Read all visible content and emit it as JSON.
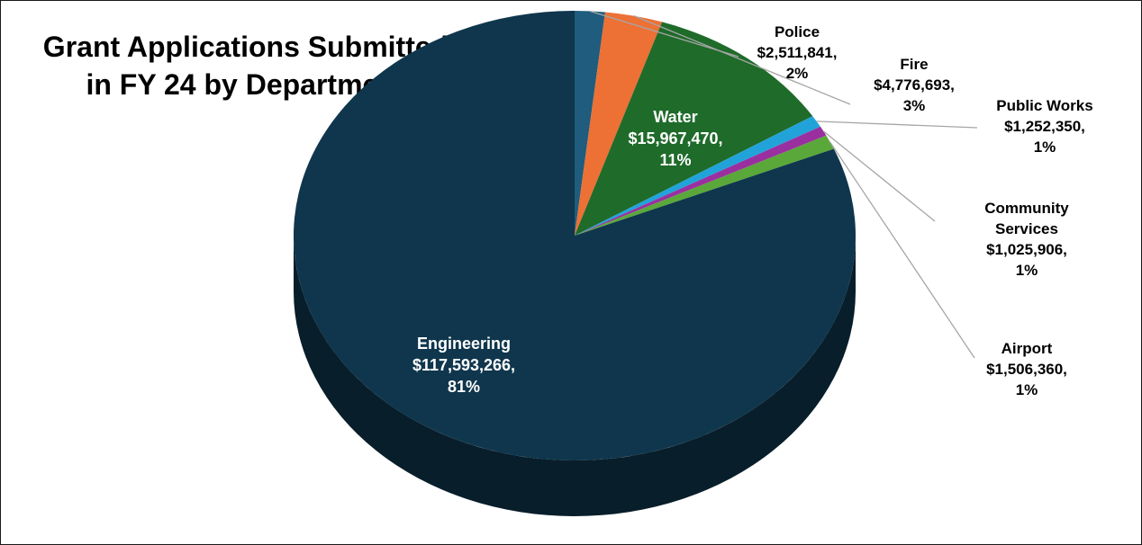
{
  "chart_data": {
    "type": "pie",
    "style": "3d",
    "title": "Grant Applications Submitted in FY 24 by Department",
    "title_lines": [
      "Grant Applications Submitted",
      "in FY 24 by Department"
    ],
    "legend": "none",
    "start": "12 o'clock, clockwise",
    "slices": [
      {
        "name": "Police",
        "value": 2511841,
        "value_label": "$2,511,841,",
        "percent_label": "2%",
        "color": "#1f5c7d"
      },
      {
        "name": "Fire",
        "value": 4776693,
        "value_label": "$4,776,693,",
        "percent_label": "3%",
        "color": "#ed7035"
      },
      {
        "name": "Water",
        "value": 15967470,
        "value_label": "$15,967,470,",
        "percent_label": "11%",
        "color": "#1f6b2a"
      },
      {
        "name": "Public Works",
        "value": 1252350,
        "value_label": "$1,252,350,",
        "percent_label": "1%",
        "color": "#21a3d9"
      },
      {
        "name": "Community Services",
        "name_lines": [
          "Community",
          "Services"
        ],
        "value": 1025906,
        "value_label": "$1,025,906,",
        "percent_label": "1%",
        "color": "#9a2fa0"
      },
      {
        "name": "Airport",
        "value": 1506360,
        "value_label": "$1,506,360,",
        "percent_label": "1%",
        "color": "#5aa83a"
      },
      {
        "name": "Engineering",
        "value": 117593266,
        "value_label": "$117,593,266,",
        "percent_label": "81%",
        "color": "#0f364d"
      }
    ]
  }
}
